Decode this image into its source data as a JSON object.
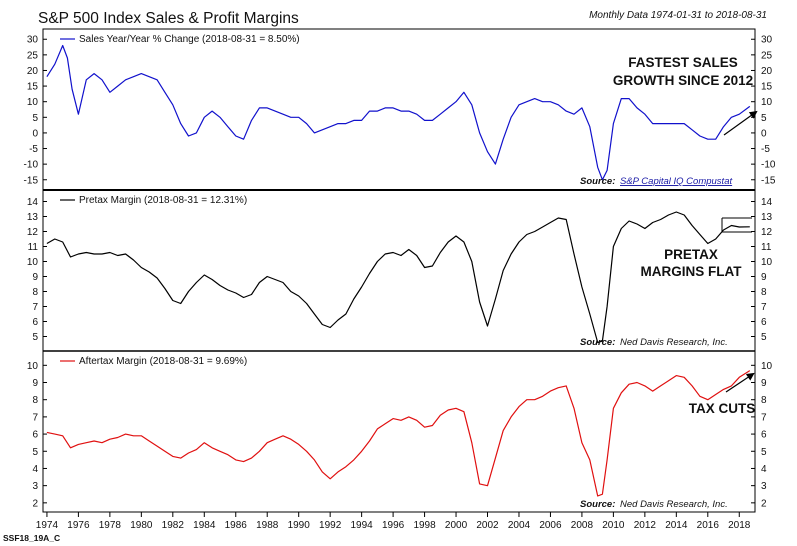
{
  "title": "S&P 500 Index Sales & Profit Margins",
  "subtitle": "Monthly Data 1974-01-31 to 2018-08-31",
  "footer_code": "SSF18_19A_C",
  "colors": {
    "sales": "#1111cc",
    "pretax": "#000000",
    "aftertax": "#e01010"
  },
  "chart_data": [
    {
      "type": "line",
      "name": "sales",
      "legend": "Sales Year/Year % Change (2018-08-31 = 8.50%)",
      "ylabel": "",
      "ylim": [
        -17,
        32
      ],
      "yticks": [
        -15,
        -10,
        -5,
        0,
        5,
        10,
        15,
        20,
        25,
        30
      ],
      "annotation": [
        "FASTEST SALES",
        "GROWTH SINCE 2012"
      ],
      "source_label": "Source:",
      "source_text": "S&P Capital IQ Compustat",
      "x": [
        1974.0,
        1974.5,
        1975.0,
        1975.3,
        1975.6,
        1976.0,
        1976.5,
        1977.0,
        1977.5,
        1978.0,
        1978.5,
        1979.0,
        1979.5,
        1980.0,
        1980.5,
        1981.0,
        1981.5,
        1982.0,
        1982.5,
        1983.0,
        1983.5,
        1984.0,
        1984.5,
        1985.0,
        1985.5,
        1986.0,
        1986.5,
        1987.0,
        1987.5,
        1988.0,
        1988.5,
        1989.0,
        1989.5,
        1990.0,
        1990.5,
        1991.0,
        1991.5,
        1992.0,
        1992.5,
        1993.0,
        1993.5,
        1994.0,
        1994.5,
        1995.0,
        1995.5,
        1996.0,
        1996.5,
        1997.0,
        1997.5,
        1998.0,
        1998.5,
        1999.0,
        1999.5,
        2000.0,
        2000.5,
        2001.0,
        2001.5,
        2002.0,
        2002.5,
        2003.0,
        2003.5,
        2004.0,
        2004.5,
        2005.0,
        2005.5,
        2006.0,
        2006.5,
        2007.0,
        2007.5,
        2008.0,
        2008.5,
        2009.0,
        2009.3,
        2009.6,
        2010.0,
        2010.5,
        2011.0,
        2011.5,
        2012.0,
        2012.5,
        2013.0,
        2013.5,
        2014.0,
        2014.5,
        2015.0,
        2015.5,
        2016.0,
        2016.5,
        2017.0,
        2017.5,
        2018.0,
        2018.67
      ],
      "values": [
        18,
        22,
        28,
        24,
        14,
        6,
        17,
        19,
        17,
        13,
        15,
        17,
        18,
        19,
        18,
        17,
        13,
        9,
        3,
        -1,
        0,
        5,
        7,
        5,
        2,
        -1,
        -2,
        4,
        8,
        8,
        7,
        6,
        5,
        5,
        3,
        0,
        1,
        2,
        3,
        3,
        4,
        4,
        7,
        7,
        8,
        8,
        7,
        7,
        6,
        4,
        4,
        6,
        8,
        10,
        13,
        9,
        0,
        -6,
        -10,
        -2,
        5,
        9,
        10,
        11,
        10,
        10,
        9,
        7,
        6,
        8,
        2,
        -11,
        -15,
        -12,
        3,
        11,
        11,
        8,
        6,
        3,
        3,
        3,
        3,
        3,
        1,
        -1,
        -2,
        -2,
        2,
        5,
        6,
        8.5
      ]
    },
    {
      "type": "line",
      "name": "pretax",
      "legend": "Pretax Margin (2018-08-31 = 12.31%)",
      "ylabel": "",
      "ylim": [
        4.3,
        14.5
      ],
      "yticks": [
        5,
        6,
        7,
        8,
        9,
        10,
        11,
        12,
        13,
        14
      ],
      "annotation": [
        "PRETAX",
        "MARGINS FLAT"
      ],
      "source_label": "Source:",
      "source_text": "Ned Davis Research, Inc.",
      "x": [
        1974.0,
        1974.5,
        1975.0,
        1975.5,
        1976.0,
        1976.5,
        1977.0,
        1977.5,
        1978.0,
        1978.5,
        1979.0,
        1979.5,
        1980.0,
        1980.5,
        1981.0,
        1981.5,
        1982.0,
        1982.5,
        1983.0,
        1983.5,
        1984.0,
        1984.5,
        1985.0,
        1985.5,
        1986.0,
        1986.5,
        1987.0,
        1987.5,
        1988.0,
        1988.5,
        1989.0,
        1989.5,
        1990.0,
        1990.5,
        1991.0,
        1991.5,
        1992.0,
        1992.5,
        1993.0,
        1993.5,
        1994.0,
        1994.5,
        1995.0,
        1995.5,
        1996.0,
        1996.5,
        1997.0,
        1997.5,
        1998.0,
        1998.5,
        1999.0,
        1999.5,
        2000.0,
        2000.5,
        2001.0,
        2001.5,
        2002.0,
        2002.5,
        2003.0,
        2003.5,
        2004.0,
        2004.5,
        2005.0,
        2005.5,
        2006.0,
        2006.5,
        2007.0,
        2007.5,
        2008.0,
        2008.5,
        2009.0,
        2009.3,
        2009.6,
        2010.0,
        2010.5,
        2011.0,
        2011.5,
        2012.0,
        2012.5,
        2013.0,
        2013.5,
        2014.0,
        2014.5,
        2015.0,
        2015.5,
        2016.0,
        2016.5,
        2017.0,
        2017.5,
        2018.0,
        2018.67
      ],
      "values": [
        11.2,
        11.5,
        11.3,
        10.3,
        10.5,
        10.6,
        10.5,
        10.5,
        10.6,
        10.4,
        10.5,
        10.1,
        9.6,
        9.3,
        8.9,
        8.2,
        7.4,
        7.2,
        8.0,
        8.6,
        9.1,
        8.8,
        8.4,
        8.1,
        7.9,
        7.6,
        7.8,
        8.6,
        9.0,
        8.8,
        8.6,
        8.0,
        7.7,
        7.2,
        6.5,
        5.8,
        5.6,
        6.1,
        6.5,
        7.5,
        8.3,
        9.2,
        10.0,
        10.5,
        10.6,
        10.4,
        10.8,
        10.4,
        9.6,
        9.7,
        10.6,
        11.3,
        11.7,
        11.3,
        10.0,
        7.3,
        5.7,
        7.5,
        9.4,
        10.5,
        11.3,
        11.8,
        12.0,
        12.3,
        12.6,
        12.9,
        12.8,
        10.5,
        8.3,
        6.5,
        4.6,
        4.7,
        7.0,
        11.0,
        12.2,
        12.7,
        12.5,
        12.2,
        12.6,
        12.8,
        13.1,
        13.3,
        13.1,
        12.4,
        11.8,
        11.2,
        11.5,
        12.1,
        12.4,
        12.3,
        12.31
      ]
    },
    {
      "type": "line",
      "name": "aftertax",
      "legend": "Aftertax Margin (2018-08-31 = 9.69%)",
      "ylabel": "",
      "ylim": [
        1.7,
        10.6
      ],
      "yticks": [
        2,
        3,
        4,
        5,
        6,
        7,
        8,
        9,
        10
      ],
      "annotation": [
        "TAX CUTS"
      ],
      "source_label": "Source:",
      "source_text": "Ned Davis Research, Inc.",
      "x": [
        1974.0,
        1974.5,
        1975.0,
        1975.5,
        1976.0,
        1976.5,
        1977.0,
        1977.5,
        1978.0,
        1978.5,
        1979.0,
        1979.5,
        1980.0,
        1980.5,
        1981.0,
        1981.5,
        1982.0,
        1982.5,
        1983.0,
        1983.5,
        1984.0,
        1984.5,
        1985.0,
        1985.5,
        1986.0,
        1986.5,
        1987.0,
        1987.5,
        1988.0,
        1988.5,
        1989.0,
        1989.5,
        1990.0,
        1990.5,
        1991.0,
        1991.5,
        1992.0,
        1992.5,
        1993.0,
        1993.5,
        1994.0,
        1994.5,
        1995.0,
        1995.5,
        1996.0,
        1996.5,
        1997.0,
        1997.5,
        1998.0,
        1998.5,
        1999.0,
        1999.5,
        2000.0,
        2000.5,
        2001.0,
        2001.5,
        2002.0,
        2002.5,
        2003.0,
        2003.5,
        2004.0,
        2004.5,
        2005.0,
        2005.5,
        2006.0,
        2006.5,
        2007.0,
        2007.5,
        2008.0,
        2008.5,
        2009.0,
        2009.3,
        2009.6,
        2010.0,
        2010.5,
        2011.0,
        2011.5,
        2012.0,
        2012.5,
        2013.0,
        2013.5,
        2014.0,
        2014.5,
        2015.0,
        2015.5,
        2016.0,
        2016.5,
        2017.0,
        2017.5,
        2018.0,
        2018.67
      ],
      "values": [
        6.1,
        6.0,
        5.9,
        5.2,
        5.4,
        5.5,
        5.6,
        5.5,
        5.7,
        5.8,
        6.0,
        5.9,
        5.9,
        5.6,
        5.3,
        5.0,
        4.7,
        4.6,
        4.9,
        5.1,
        5.5,
        5.2,
        5.0,
        4.8,
        4.5,
        4.4,
        4.6,
        5.0,
        5.5,
        5.7,
        5.9,
        5.7,
        5.4,
        5.0,
        4.5,
        3.8,
        3.4,
        3.8,
        4.1,
        4.5,
        5.0,
        5.6,
        6.3,
        6.6,
        6.9,
        6.8,
        7.0,
        6.8,
        6.4,
        6.5,
        7.1,
        7.4,
        7.5,
        7.3,
        5.5,
        3.1,
        3.0,
        4.6,
        6.2,
        7.0,
        7.6,
        8.0,
        8.0,
        8.2,
        8.5,
        8.7,
        8.8,
        7.5,
        5.5,
        4.5,
        2.4,
        2.5,
        4.5,
        7.5,
        8.4,
        8.9,
        9.0,
        8.8,
        8.5,
        8.8,
        9.1,
        9.4,
        9.3,
        8.8,
        8.2,
        8.0,
        8.3,
        8.6,
        8.8,
        9.3,
        9.69
      ]
    }
  ],
  "xaxis": {
    "range": [
      1973.75,
      2019.0
    ],
    "ticks": [
      "1974",
      "1976",
      "1978",
      "1980",
      "1982",
      "1984",
      "1986",
      "1988",
      "1990",
      "1992",
      "1994",
      "1996",
      "1998",
      "2000",
      "2002",
      "2004",
      "2006",
      "2008",
      "2010",
      "2012",
      "2014",
      "2016",
      "2018"
    ]
  }
}
